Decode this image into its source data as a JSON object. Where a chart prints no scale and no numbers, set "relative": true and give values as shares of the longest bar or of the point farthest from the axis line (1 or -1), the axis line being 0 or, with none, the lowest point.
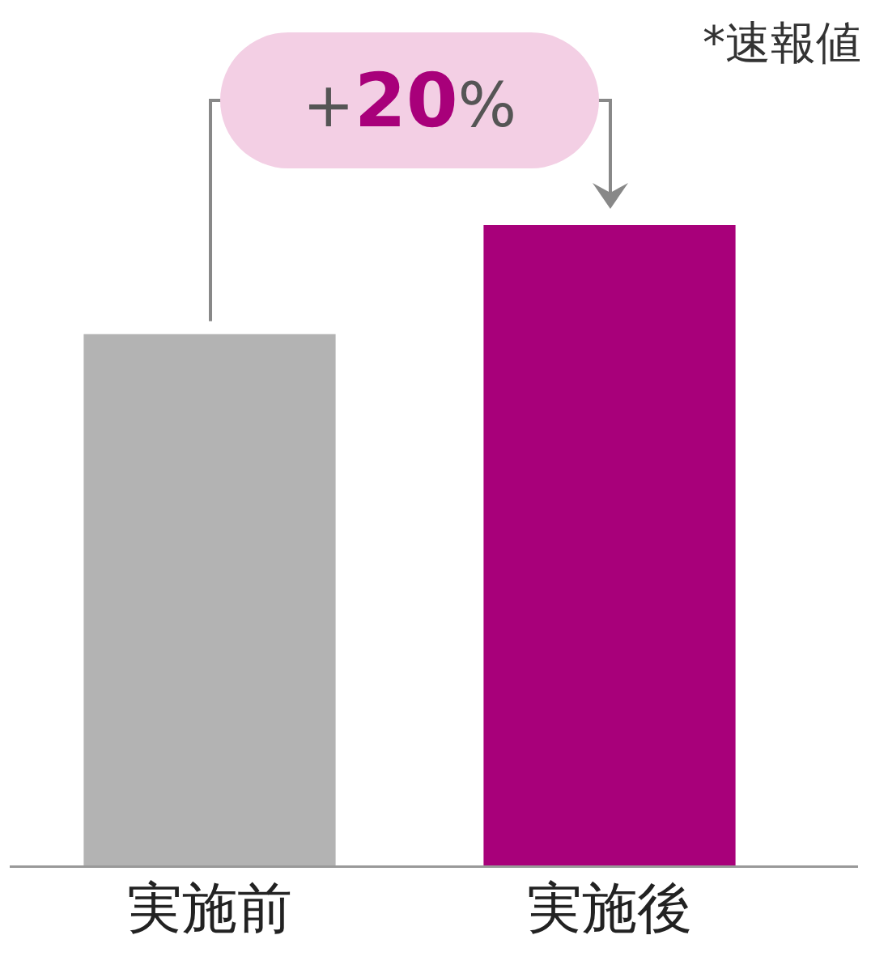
{
  "chart_data": {
    "type": "bar",
    "relative": true,
    "categories": [
      "実施前",
      "実施後"
    ],
    "values": [
      0.83,
      1
    ],
    "colors": [
      "#b3b3b3",
      "#a8007a"
    ],
    "annotations": [
      "+20%",
      "*速報値"
    ],
    "grid": false,
    "legend": false
  }
}
